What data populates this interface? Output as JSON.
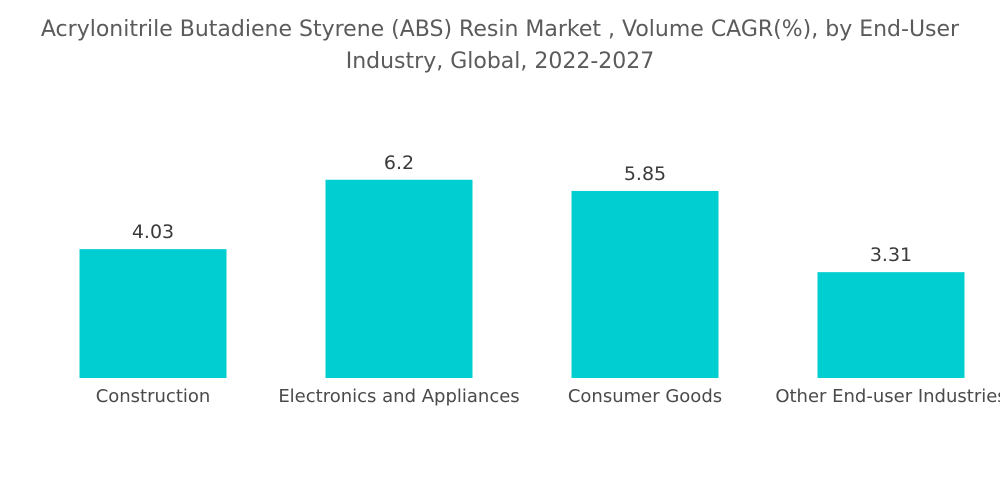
{
  "chart_data": {
    "type": "bar",
    "title": "Acrylonitrile Butadiene Styrene (ABS) Resin Market , Volume CAGR(%), by End-User Industry, Global, 2022-2027",
    "xlabel": "",
    "ylabel": "",
    "categories": [
      "Construction",
      "Electronics and Appliances",
      "Consumer Goods",
      "Other End-user Industries"
    ],
    "values": [
      4.03,
      6.2,
      5.85,
      3.31
    ],
    "value_labels": [
      "4.03",
      "6.2",
      "5.85",
      "3.31"
    ],
    "ylim": [
      0,
      7.6
    ],
    "grid": false,
    "legend": "none",
    "bar_color": "#00CED1"
  }
}
